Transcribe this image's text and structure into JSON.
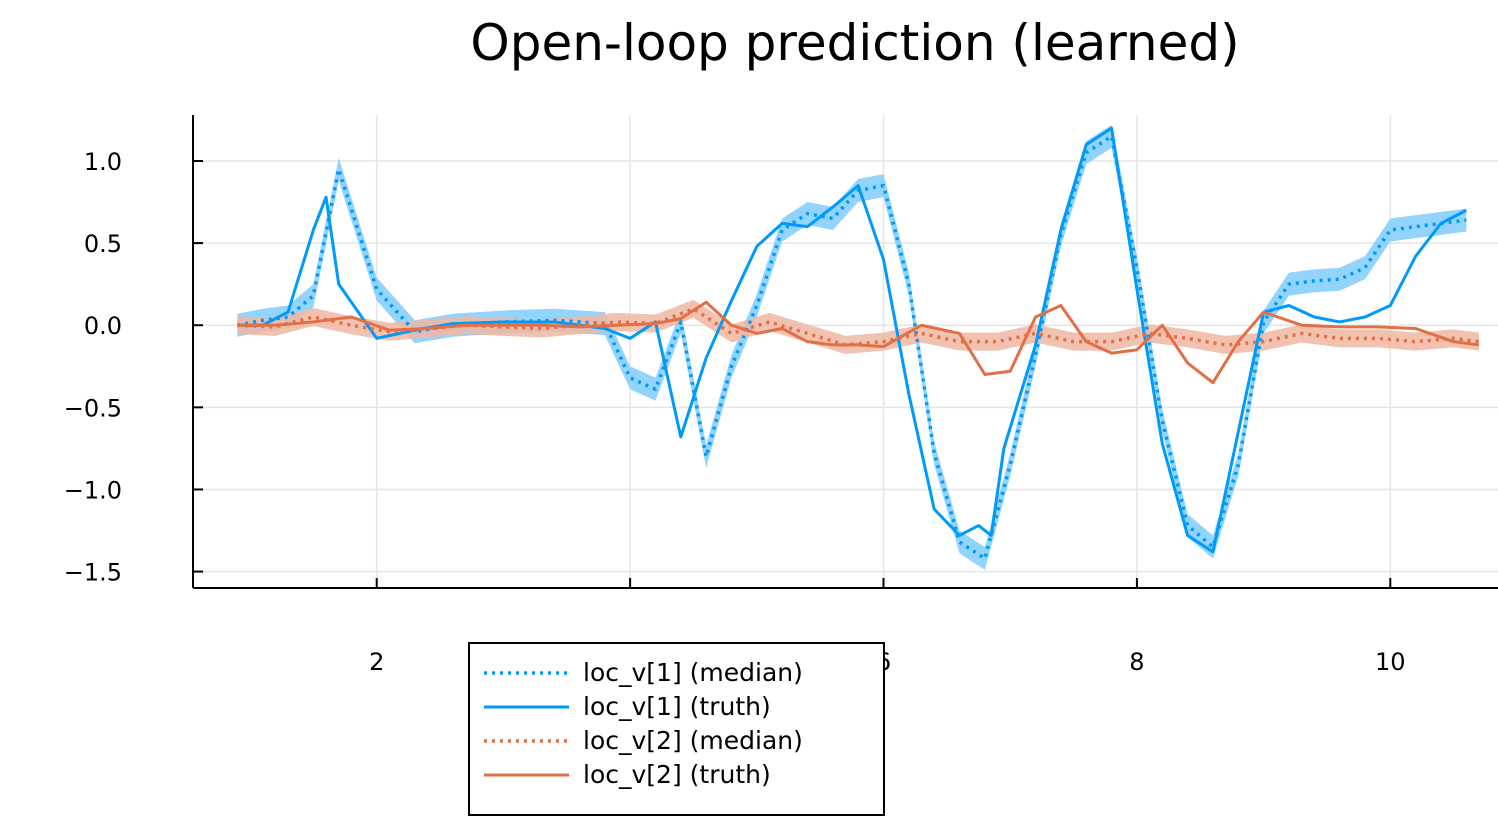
{
  "chart_data": {
    "type": "line",
    "title": "Open-loop prediction (learned)",
    "xlabel": "",
    "ylabel": "",
    "xlim": [
      0.55,
      10.85
    ],
    "ylim": [
      -1.6,
      1.28
    ],
    "xticks": [
      2,
      4,
      6,
      8,
      10
    ],
    "xtick_labels": [
      "2",
      "",
      "6",
      "8",
      "10"
    ],
    "yticks": [
      1.0,
      0.5,
      0.0,
      -0.5,
      -1.0,
      -1.5
    ],
    "ytick_labels": [
      "1.0",
      "0.5",
      "0.0",
      "−0.5",
      "−1.0",
      "−1.5"
    ],
    "grid": true,
    "legend_position": "bottom-center",
    "colors": {
      "blue": "#009AFA",
      "orange": "#E26F46",
      "blue_band": "#7FCDFD",
      "orange_band": "#F0B7A2"
    },
    "series": [
      {
        "name": "loc_v[1] (median)",
        "style": "dotted",
        "color": "#009AFA",
        "band_halfwidth": 0.07,
        "x": [
          0.9,
          1.1,
          1.3,
          1.5,
          1.7,
          2.0,
          2.3,
          2.6,
          3.0,
          3.4,
          3.8,
          4.0,
          4.2,
          4.4,
          4.6,
          4.8,
          5.0,
          5.2,
          5.4,
          5.6,
          5.8,
          6.0,
          6.2,
          6.4,
          6.6,
          6.8,
          7.0,
          7.2,
          7.4,
          7.6,
          7.8,
          8.0,
          8.2,
          8.4,
          8.6,
          8.8,
          9.0,
          9.2,
          9.4,
          9.6,
          9.8,
          10.0,
          10.2,
          10.4,
          10.6
        ],
        "y": [
          0.0,
          0.03,
          0.05,
          0.18,
          0.95,
          0.22,
          -0.04,
          0.0,
          0.02,
          0.03,
          0.01,
          -0.32,
          -0.39,
          0.02,
          -0.8,
          -0.25,
          0.12,
          0.58,
          0.68,
          0.65,
          0.82,
          0.85,
          0.25,
          -0.78,
          -1.32,
          -1.42,
          -0.85,
          -0.18,
          0.55,
          1.05,
          1.15,
          0.35,
          -0.58,
          -1.22,
          -1.35,
          -0.85,
          0.02,
          0.25,
          0.27,
          0.28,
          0.35,
          0.58,
          0.6,
          0.62,
          0.64
        ]
      },
      {
        "name": "loc_v[1] (truth)",
        "style": "solid",
        "color": "#009AFA",
        "x": [
          0.9,
          1.1,
          1.3,
          1.5,
          1.6,
          1.7,
          2.0,
          2.3,
          2.6,
          3.0,
          3.4,
          3.8,
          4.0,
          4.2,
          4.4,
          4.6,
          4.8,
          5.0,
          5.2,
          5.4,
          5.6,
          5.8,
          6.0,
          6.2,
          6.4,
          6.6,
          6.75,
          6.85,
          6.95,
          7.2,
          7.4,
          7.6,
          7.8,
          8.0,
          8.2,
          8.4,
          8.6,
          8.8,
          9.0,
          9.2,
          9.4,
          9.6,
          9.8,
          10.0,
          10.2,
          10.4,
          10.6
        ],
        "y": [
          0.0,
          0.0,
          0.08,
          0.58,
          0.78,
          0.25,
          -0.08,
          -0.03,
          0.01,
          0.02,
          0.02,
          -0.02,
          -0.08,
          0.02,
          -0.68,
          -0.2,
          0.15,
          0.48,
          0.62,
          0.6,
          0.72,
          0.85,
          0.4,
          -0.42,
          -1.12,
          -1.28,
          -1.22,
          -1.28,
          -0.75,
          -0.12,
          0.58,
          1.1,
          1.2,
          0.22,
          -0.72,
          -1.28,
          -1.38,
          -0.65,
          0.08,
          0.12,
          0.05,
          0.02,
          0.05,
          0.12,
          0.42,
          0.62,
          0.7
        ]
      },
      {
        "name": "loc_v[2] (median)",
        "style": "dotted",
        "color": "#E26F46",
        "band_halfwidth": 0.055,
        "x": [
          0.9,
          1.2,
          1.5,
          1.8,
          2.1,
          2.4,
          2.7,
          3.0,
          3.3,
          3.6,
          3.9,
          4.2,
          4.5,
          4.8,
          5.1,
          5.4,
          5.7,
          6.0,
          6.3,
          6.6,
          6.9,
          7.2,
          7.5,
          7.8,
          8.1,
          8.4,
          8.7,
          9.0,
          9.3,
          9.6,
          9.9,
          10.2,
          10.5,
          10.7
        ],
        "y": [
          0.0,
          -0.01,
          0.05,
          0.0,
          -0.04,
          -0.02,
          0.0,
          -0.01,
          -0.02,
          0.0,
          0.02,
          0.01,
          0.1,
          -0.05,
          0.02,
          -0.05,
          -0.12,
          -0.1,
          -0.05,
          -0.1,
          -0.1,
          -0.05,
          -0.1,
          -0.1,
          -0.05,
          -0.08,
          -0.12,
          -0.1,
          -0.05,
          -0.08,
          -0.08,
          -0.1,
          -0.08,
          -0.1
        ]
      },
      {
        "name": "loc_v[2] (truth)",
        "style": "solid",
        "color": "#E26F46",
        "x": [
          0.9,
          1.2,
          1.5,
          1.8,
          2.1,
          2.4,
          2.7,
          3.0,
          3.3,
          3.6,
          3.9,
          4.2,
          4.4,
          4.6,
          4.8,
          5.0,
          5.2,
          5.4,
          5.6,
          5.8,
          6.0,
          6.3,
          6.6,
          6.8,
          7.0,
          7.2,
          7.4,
          7.6,
          7.8,
          8.0,
          8.2,
          8.4,
          8.6,
          8.8,
          9.0,
          9.3,
          9.6,
          9.9,
          10.2,
          10.5,
          10.7
        ],
        "y": [
          0.0,
          0.0,
          0.02,
          0.05,
          -0.03,
          -0.02,
          0.0,
          0.0,
          0.0,
          -0.01,
          0.0,
          0.01,
          0.04,
          0.14,
          0.0,
          -0.05,
          -0.02,
          -0.1,
          -0.12,
          -0.12,
          -0.13,
          0.0,
          -0.05,
          -0.3,
          -0.28,
          0.05,
          0.12,
          -0.1,
          -0.17,
          -0.15,
          0.0,
          -0.23,
          -0.35,
          -0.1,
          0.08,
          0.0,
          -0.01,
          -0.01,
          -0.02,
          -0.1,
          -0.12
        ]
      }
    ]
  }
}
